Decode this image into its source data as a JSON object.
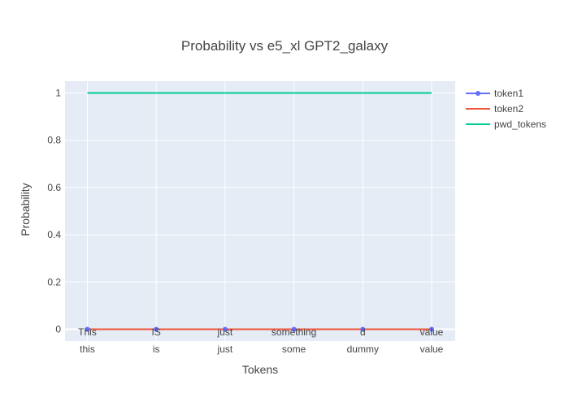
{
  "chart_data": {
    "type": "line",
    "title": "Probability vs e5_xl GPT2_galaxy",
    "xlabel": "Tokens",
    "ylabel": "Probability",
    "categories": [
      {
        "top": "This",
        "bottom": "this"
      },
      {
        "top": "IS",
        "bottom": "is"
      },
      {
        "top": "just",
        "bottom": "just"
      },
      {
        "top": "something",
        "bottom": "some"
      },
      {
        "top": "d",
        "bottom": "dummy"
      },
      {
        "top": "value",
        "bottom": "value"
      }
    ],
    "ylim": [
      -0.05,
      1.05
    ],
    "yticks": [
      0,
      0.2,
      0.4,
      0.6,
      0.8,
      1
    ],
    "ytick_labels": [
      "0",
      "0.2",
      "0.4",
      "0.6",
      "0.8",
      "1"
    ],
    "grid": true,
    "legend_position": "top-right",
    "series": [
      {
        "name": "token1",
        "values": [
          0,
          0,
          0,
          0,
          0,
          0
        ],
        "color": "#636efa",
        "markers": true
      },
      {
        "name": "token2",
        "values": [
          0,
          0,
          0,
          0,
          0,
          0
        ],
        "color": "#ef553b",
        "markers": false
      },
      {
        "name": "pwd_tokens",
        "values": [
          1,
          1,
          1,
          1,
          1,
          1
        ],
        "color": "#00cc96",
        "markers": false
      }
    ]
  }
}
